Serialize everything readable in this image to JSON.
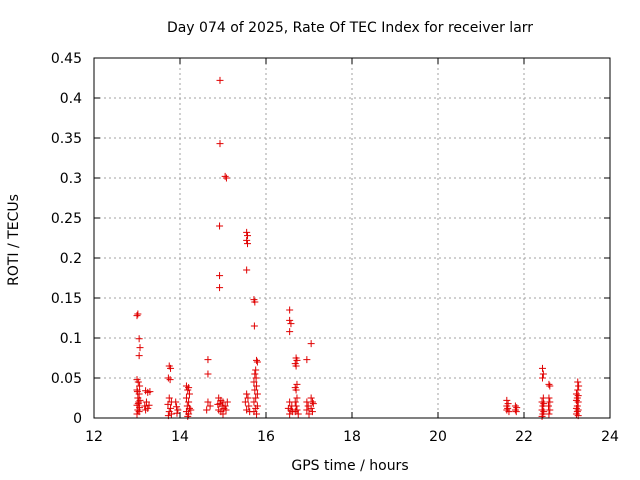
{
  "chart_data": {
    "type": "scatter",
    "title": "Day 074 of 2025, Rate Of TEC Index for receiver larr",
    "xlabel": "GPS time / hours",
    "ylabel": "ROTI / TECUs",
    "xlim": [
      12,
      24
    ],
    "ylim": [
      0,
      0.45
    ],
    "xticks": [
      12,
      14,
      16,
      18,
      20,
      22,
      24
    ],
    "yticks": [
      0,
      0.05,
      0.1,
      0.15,
      0.2,
      0.25,
      0.3,
      0.35,
      0.4,
      0.45
    ],
    "xtick_labels": [
      "12",
      "14",
      "16",
      "18",
      "20",
      "22",
      "24"
    ],
    "ytick_labels": [
      "0",
      "0.05",
      "0.1",
      "0.15",
      "0.2",
      "0.25",
      "0.3",
      "0.35",
      "0.4",
      "0.45"
    ],
    "grid": true,
    "marker": "+",
    "marker_color": "#e00000",
    "series": [
      {
        "name": "ROTI",
        "points": [
          [
            13.0,
            0.128
          ],
          [
            13.02,
            0.13
          ],
          [
            13.05,
            0.099
          ],
          [
            13.07,
            0.088
          ],
          [
            13.05,
            0.078
          ],
          [
            13.0,
            0.048
          ],
          [
            13.03,
            0.045
          ],
          [
            13.06,
            0.04
          ],
          [
            13.0,
            0.035
          ],
          [
            13.05,
            0.03
          ],
          [
            13.02,
            0.025
          ],
          [
            13.04,
            0.02
          ],
          [
            13.0,
            0.016
          ],
          [
            13.06,
            0.013
          ],
          [
            13.02,
            0.01
          ],
          [
            13.05,
            0.008
          ],
          [
            13.0,
            0.005
          ],
          [
            13.03,
            0.018
          ],
          [
            13.07,
            0.022
          ],
          [
            13.01,
            0.033
          ],
          [
            13.2,
            0.034
          ],
          [
            13.25,
            0.032
          ],
          [
            13.22,
            0.02
          ],
          [
            13.18,
            0.015
          ],
          [
            13.25,
            0.012
          ],
          [
            13.2,
            0.01
          ],
          [
            13.28,
            0.016
          ],
          [
            13.3,
            0.033
          ],
          [
            13.75,
            0.065
          ],
          [
            13.78,
            0.062
          ],
          [
            13.73,
            0.05
          ],
          [
            13.77,
            0.048
          ],
          [
            13.75,
            0.025
          ],
          [
            13.8,
            0.02
          ],
          [
            13.72,
            0.017
          ],
          [
            13.78,
            0.012
          ],
          [
            13.75,
            0.008
          ],
          [
            13.8,
            0.005
          ],
          [
            13.73,
            0.003
          ],
          [
            13.9,
            0.02
          ],
          [
            13.92,
            0.014
          ],
          [
            13.95,
            0.01
          ],
          [
            13.93,
            0.006
          ],
          [
            14.15,
            0.04
          ],
          [
            14.2,
            0.038
          ],
          [
            14.18,
            0.035
          ],
          [
            14.22,
            0.03
          ],
          [
            14.15,
            0.025
          ],
          [
            14.2,
            0.02
          ],
          [
            14.17,
            0.015
          ],
          [
            14.22,
            0.012
          ],
          [
            14.15,
            0.008
          ],
          [
            14.2,
            0.005
          ],
          [
            14.18,
            0.002
          ],
          [
            14.25,
            0.01
          ],
          [
            14.65,
            0.073
          ],
          [
            14.65,
            0.055
          ],
          [
            14.65,
            0.02
          ],
          [
            14.7,
            0.015
          ],
          [
            14.62,
            0.01
          ],
          [
            14.93,
            0.422
          ],
          [
            14.93,
            0.343
          ],
          [
            14.92,
            0.24
          ],
          [
            14.92,
            0.178
          ],
          [
            14.92,
            0.163
          ],
          [
            15.05,
            0.302
          ],
          [
            15.08,
            0.3
          ],
          [
            14.9,
            0.025
          ],
          [
            14.95,
            0.022
          ],
          [
            15.0,
            0.02
          ],
          [
            14.93,
            0.018
          ],
          [
            14.98,
            0.015
          ],
          [
            15.02,
            0.012
          ],
          [
            14.9,
            0.01
          ],
          [
            14.95,
            0.008
          ],
          [
            15.0,
            0.005
          ],
          [
            15.05,
            0.015
          ],
          [
            14.88,
            0.017
          ],
          [
            15.07,
            0.01
          ],
          [
            15.1,
            0.02
          ],
          [
            15.55,
            0.232
          ],
          [
            15.57,
            0.228
          ],
          [
            15.55,
            0.222
          ],
          [
            15.57,
            0.218
          ],
          [
            15.55,
            0.185
          ],
          [
            15.55,
            0.03
          ],
          [
            15.58,
            0.025
          ],
          [
            15.52,
            0.02
          ],
          [
            15.6,
            0.015
          ],
          [
            15.55,
            0.01
          ],
          [
            15.62,
            0.008
          ],
          [
            15.72,
            0.148
          ],
          [
            15.74,
            0.145
          ],
          [
            15.73,
            0.115
          ],
          [
            15.78,
            0.072
          ],
          [
            15.8,
            0.07
          ],
          [
            15.76,
            0.06
          ],
          [
            15.74,
            0.055
          ],
          [
            15.77,
            0.05
          ],
          [
            15.72,
            0.045
          ],
          [
            15.78,
            0.04
          ],
          [
            15.74,
            0.035
          ],
          [
            15.8,
            0.03
          ],
          [
            15.76,
            0.025
          ],
          [
            15.72,
            0.02
          ],
          [
            15.8,
            0.015
          ],
          [
            15.76,
            0.012
          ],
          [
            15.72,
            0.008
          ],
          [
            15.78,
            0.005
          ],
          [
            16.55,
            0.135
          ],
          [
            16.55,
            0.122
          ],
          [
            16.58,
            0.118
          ],
          [
            16.55,
            0.108
          ],
          [
            16.55,
            0.02
          ],
          [
            16.6,
            0.015
          ],
          [
            16.52,
            0.012
          ],
          [
            16.58,
            0.01
          ],
          [
            16.55,
            0.005
          ],
          [
            16.62,
            0.008
          ],
          [
            16.7,
            0.075
          ],
          [
            16.72,
            0.072
          ],
          [
            16.68,
            0.068
          ],
          [
            16.7,
            0.065
          ],
          [
            16.72,
            0.042
          ],
          [
            16.68,
            0.038
          ],
          [
            16.7,
            0.035
          ],
          [
            16.72,
            0.025
          ],
          [
            16.68,
            0.02
          ],
          [
            16.7,
            0.015
          ],
          [
            16.72,
            0.01
          ],
          [
            16.68,
            0.008
          ],
          [
            16.75,
            0.005
          ],
          [
            16.95,
            0.073
          ],
          [
            16.95,
            0.02
          ],
          [
            16.98,
            0.015
          ],
          [
            16.95,
            0.01
          ],
          [
            17.0,
            0.005
          ],
          [
            17.05,
            0.093
          ],
          [
            17.05,
            0.025
          ],
          [
            17.08,
            0.02
          ],
          [
            17.1,
            0.018
          ],
          [
            17.05,
            0.012
          ],
          [
            17.08,
            0.008
          ],
          [
            21.6,
            0.022
          ],
          [
            21.63,
            0.018
          ],
          [
            21.6,
            0.015
          ],
          [
            21.62,
            0.012
          ],
          [
            21.6,
            0.01
          ],
          [
            21.65,
            0.008
          ],
          [
            21.8,
            0.015
          ],
          [
            21.83,
            0.013
          ],
          [
            21.8,
            0.01
          ],
          [
            21.82,
            0.008
          ],
          [
            22.43,
            0.062
          ],
          [
            22.45,
            0.055
          ],
          [
            22.43,
            0.05
          ],
          [
            22.45,
            0.025
          ],
          [
            22.42,
            0.02
          ],
          [
            22.46,
            0.018
          ],
          [
            22.44,
            0.015
          ],
          [
            22.42,
            0.01
          ],
          [
            22.46,
            0.008
          ],
          [
            22.44,
            0.005
          ],
          [
            22.42,
            0.002
          ],
          [
            22.58,
            0.042
          ],
          [
            22.6,
            0.04
          ],
          [
            22.58,
            0.025
          ],
          [
            22.6,
            0.02
          ],
          [
            22.57,
            0.015
          ],
          [
            22.6,
            0.01
          ],
          [
            22.58,
            0.005
          ],
          [
            23.25,
            0.045
          ],
          [
            23.27,
            0.04
          ],
          [
            23.25,
            0.035
          ],
          [
            23.22,
            0.03
          ],
          [
            23.26,
            0.028
          ],
          [
            23.24,
            0.025
          ],
          [
            23.22,
            0.022
          ],
          [
            23.26,
            0.02
          ],
          [
            23.24,
            0.015
          ],
          [
            23.22,
            0.012
          ],
          [
            23.26,
            0.01
          ],
          [
            23.24,
            0.008
          ],
          [
            23.22,
            0.005
          ],
          [
            23.26,
            0.003
          ]
        ]
      }
    ]
  }
}
